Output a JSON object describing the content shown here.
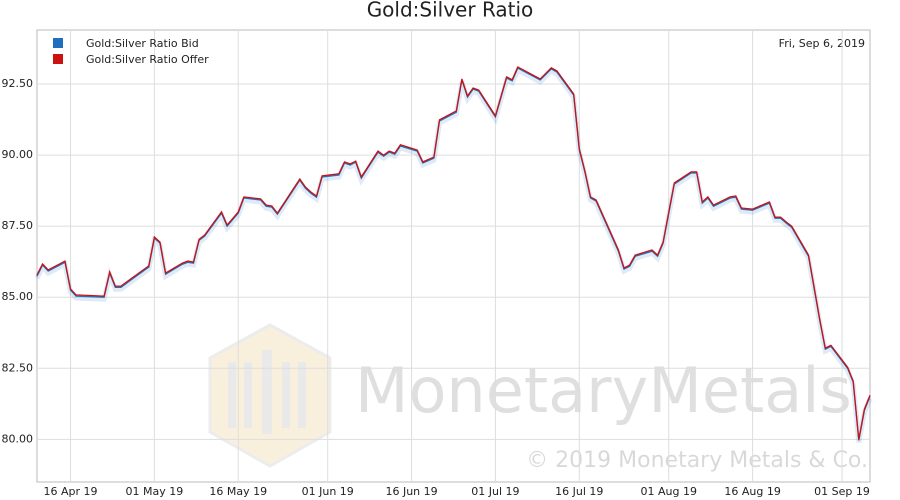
{
  "chart_data": {
    "type": "line",
    "title": "Gold:Silver Ratio",
    "date_label": "Fri, Sep 6, 2019",
    "watermark": "MonetaryMetals",
    "copyright": "© 2019 Monetary Metals & Co.",
    "x": [
      "2019-04-10",
      "2019-04-11",
      "2019-04-12",
      "2019-04-15",
      "2019-04-16",
      "2019-04-17",
      "2019-04-22",
      "2019-04-23",
      "2019-04-24",
      "2019-04-25",
      "2019-04-29",
      "2019-04-30",
      "2019-05-01",
      "2019-05-02",
      "2019-05-03",
      "2019-05-06",
      "2019-05-07",
      "2019-05-08",
      "2019-05-09",
      "2019-05-10",
      "2019-05-13",
      "2019-05-14",
      "2019-05-16",
      "2019-05-17",
      "2019-05-20",
      "2019-05-21",
      "2019-05-22",
      "2019-05-23",
      "2019-05-27",
      "2019-05-28",
      "2019-05-29",
      "2019-05-30",
      "2019-05-31",
      "2019-06-03",
      "2019-06-04",
      "2019-06-05",
      "2019-06-06",
      "2019-06-07",
      "2019-06-10",
      "2019-06-11",
      "2019-06-12",
      "2019-06-13",
      "2019-06-14",
      "2019-06-17",
      "2019-06-18",
      "2019-06-20",
      "2019-06-21",
      "2019-06-24",
      "2019-06-25",
      "2019-06-26",
      "2019-06-27",
      "2019-06-28",
      "2019-07-01",
      "2019-07-03",
      "2019-07-04",
      "2019-07-05",
      "2019-07-09",
      "2019-07-11",
      "2019-07-12",
      "2019-07-15",
      "2019-07-16",
      "2019-07-17",
      "2019-07-18",
      "2019-07-19",
      "2019-07-23",
      "2019-07-24",
      "2019-07-25",
      "2019-07-26",
      "2019-07-29",
      "2019-07-30",
      "2019-07-31",
      "2019-08-02",
      "2019-08-05",
      "2019-08-06",
      "2019-08-07",
      "2019-08-08",
      "2019-08-09",
      "2019-08-12",
      "2019-08-13",
      "2019-08-14",
      "2019-08-16",
      "2019-08-19",
      "2019-08-20",
      "2019-08-21",
      "2019-08-22",
      "2019-08-23",
      "2019-08-26",
      "2019-08-27",
      "2019-08-28",
      "2019-08-29",
      "2019-08-30",
      "2019-09-02",
      "2019-09-03",
      "2019-09-04",
      "2019-09-05",
      "2019-09-06"
    ],
    "series": [
      {
        "name": "Gold:Silver Ratio Bid",
        "color": "#1f6fbf",
        "values": [
          85.74,
          86.13,
          85.92,
          86.23,
          85.25,
          85.04,
          85.0,
          85.85,
          85.35,
          85.35,
          85.92,
          86.06,
          87.08,
          86.9,
          85.81,
          86.16,
          86.23,
          86.2,
          87.0,
          87.15,
          87.96,
          87.5,
          87.96,
          88.49,
          88.42,
          88.2,
          88.17,
          87.92,
          89.12,
          88.84,
          88.66,
          88.52,
          89.23,
          89.3,
          89.72,
          89.65,
          89.75,
          89.19,
          90.1,
          89.96,
          90.1,
          90.03,
          90.32,
          90.14,
          89.72,
          89.89,
          91.2,
          91.51,
          92.64,
          92.04,
          92.32,
          92.25,
          91.34,
          92.71,
          92.61,
          93.06,
          92.64,
          93.03,
          92.92,
          92.11,
          90.18,
          89.4,
          88.49,
          88.38,
          86.62,
          85.99,
          86.09,
          86.44,
          86.62,
          86.44,
          86.9,
          88.98,
          89.37,
          89.37,
          88.31,
          88.49,
          88.2,
          88.49,
          88.52,
          88.1,
          88.06,
          88.31,
          87.78,
          87.78,
          87.61,
          87.46,
          86.44,
          85.32,
          84.19,
          83.17,
          83.27,
          82.5,
          82.01,
          79.96,
          81.02,
          81.51
        ]
      },
      {
        "name": "Gold:Silver Ratio Offer",
        "color": "#cc1111",
        "values": [
          85.78,
          86.17,
          85.96,
          86.27,
          85.29,
          85.08,
          85.04,
          85.89,
          85.39,
          85.39,
          85.96,
          86.1,
          87.12,
          86.94,
          85.85,
          86.2,
          86.27,
          86.24,
          87.04,
          87.19,
          88.0,
          87.54,
          88.0,
          88.53,
          88.46,
          88.24,
          88.21,
          87.96,
          89.16,
          88.88,
          88.7,
          88.56,
          89.27,
          89.34,
          89.76,
          89.69,
          89.79,
          89.23,
          90.14,
          90.0,
          90.14,
          90.07,
          90.36,
          90.18,
          89.76,
          89.93,
          91.24,
          91.55,
          92.68,
          92.08,
          92.36,
          92.29,
          91.38,
          92.75,
          92.65,
          93.1,
          92.68,
          93.07,
          92.96,
          92.15,
          90.22,
          89.44,
          88.53,
          88.42,
          86.66,
          86.03,
          86.13,
          86.48,
          86.66,
          86.48,
          86.94,
          89.02,
          89.41,
          89.41,
          88.35,
          88.53,
          88.24,
          88.53,
          88.56,
          88.14,
          88.1,
          88.35,
          87.82,
          87.82,
          87.65,
          87.5,
          86.48,
          85.36,
          84.23,
          83.21,
          83.31,
          82.54,
          82.05,
          80.0,
          81.06,
          81.55
        ]
      }
    ],
    "xlim": [
      "2019-04-10",
      "2019-09-06"
    ],
    "xticks": [
      {
        "value": "2019-04-16",
        "label": "16 Apr 19"
      },
      {
        "value": "2019-05-01",
        "label": "01 May 19"
      },
      {
        "value": "2019-05-16",
        "label": "16 May 19"
      },
      {
        "value": "2019-06-01",
        "label": "01 Jun 19"
      },
      {
        "value": "2019-06-16",
        "label": "16 Jun 19"
      },
      {
        "value": "2019-07-01",
        "label": "01 Jul 19"
      },
      {
        "value": "2019-07-16",
        "label": "16 Jul 19"
      },
      {
        "value": "2019-08-01",
        "label": "01 Aug 19"
      },
      {
        "value": "2019-08-16",
        "label": "16 Aug 19"
      },
      {
        "value": "2019-09-01",
        "label": "01 Sep 19"
      }
    ],
    "ylim": [
      78.5,
      94.4
    ],
    "yticks": [
      {
        "value": 80,
        "label": "80.00"
      },
      {
        "value": 82.5,
        "label": "82.50"
      },
      {
        "value": 85,
        "label": "85.00"
      },
      {
        "value": 87.5,
        "label": "87.50"
      },
      {
        "value": 90,
        "label": "90.00"
      },
      {
        "value": 92.5,
        "label": "92.50"
      }
    ],
    "grid": true
  }
}
